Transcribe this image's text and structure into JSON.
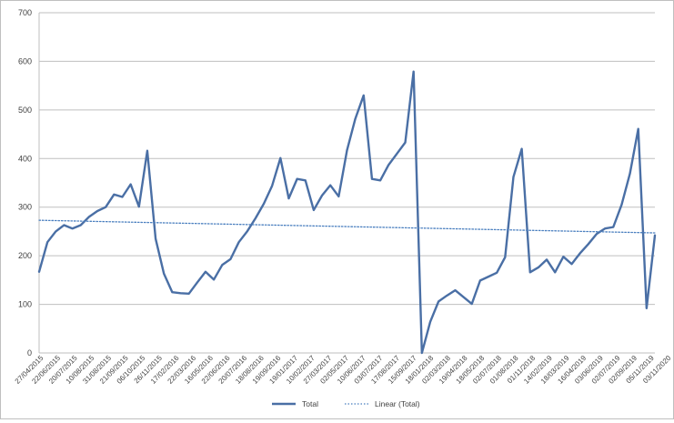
{
  "chart_data": {
    "type": "line",
    "title": "",
    "xlabel": "",
    "ylabel": "",
    "ylim": [
      0,
      700
    ],
    "yticks": [
      "0",
      "100",
      "200",
      "300",
      "400",
      "500",
      "600",
      "700"
    ],
    "grid": true,
    "legend_position": "bottom",
    "x_tick_labels": [
      "27/04/2015",
      "22/06/2015",
      "20/07/2015",
      "10/08/2015",
      "31/08/2015",
      "21/09/2015",
      "06/10/2015",
      "26/11/2015",
      "17/02/2016",
      "22/03/2016",
      "16/05/2016",
      "22/06/2016",
      "20/07/2016",
      "18/08/2016",
      "19/09/2016",
      "19/01/2017",
      "10/02/2017",
      "27/03/2017",
      "02/05/2017",
      "10/06/2017",
      "03/07/2017",
      "17/08/2017",
      "15/09/2017",
      "18/01/2018",
      "02/03/2018",
      "19/04/2018",
      "18/05/2018",
      "02/07/2018",
      "01/08/2018",
      "01/11/2018",
      "14/02/2019",
      "18/03/2019",
      "16/04/2019",
      "03/06/2019",
      "02/07/2019",
      "02/09/2019",
      "05/11/2019",
      "03/11/2020"
    ],
    "series": [
      {
        "name": "Total",
        "color": "#4a6fa5",
        "style": "solid",
        "values": [
          167,
          228,
          250,
          263,
          256,
          263,
          280,
          292,
          300,
          326,
          321,
          347,
          301,
          416,
          235,
          163,
          125,
          123,
          122,
          145,
          167,
          151,
          181,
          193,
          228,
          250,
          277,
          307,
          344,
          401,
          318,
          358,
          355,
          294,
          324,
          345,
          322,
          417,
          482,
          530,
          358,
          355,
          387,
          410,
          433,
          579,
          0,
          64,
          106,
          118,
          129,
          115,
          101,
          149,
          157,
          165,
          197,
          362,
          420,
          166,
          176,
          192,
          166,
          198,
          183,
          205,
          224,
          245,
          256,
          259,
          305,
          369,
          461,
          92,
          242
        ]
      },
      {
        "name": "Linear (Total)",
        "color": "#4a7fbf",
        "style": "dotted",
        "values": [
          273,
          247
        ]
      }
    ]
  },
  "legend": {
    "total_label": "Total",
    "trend_label": "Linear (Total)"
  }
}
